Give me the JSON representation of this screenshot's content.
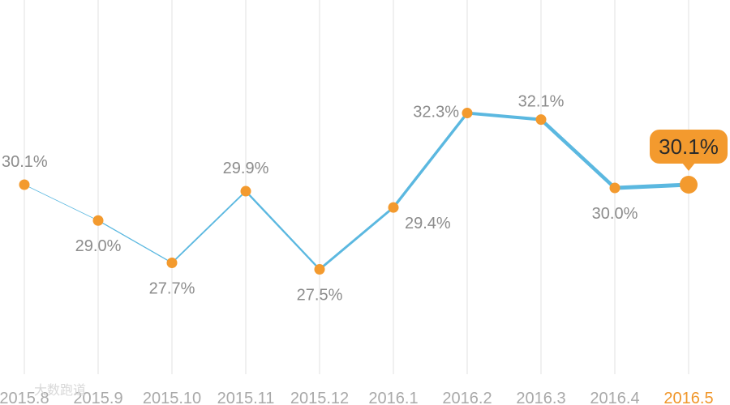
{
  "chart_data": {
    "type": "line",
    "categories": [
      "2015.8",
      "2015.9",
      "2015.10",
      "2015.11",
      "2015.12",
      "2016.1",
      "2016.2",
      "2016.3",
      "2016.4",
      "2016.5"
    ],
    "values": [
      30.1,
      29.0,
      27.7,
      29.9,
      27.5,
      29.4,
      32.3,
      32.1,
      30.0,
      30.1
    ],
    "labels": [
      "30.1%",
      "29.0%",
      "27.7%",
      "29.9%",
      "27.5%",
      "29.4%",
      "32.3%",
      "32.1%",
      "30.0%",
      "30.1%"
    ],
    "label_position": [
      "above",
      "below",
      "below",
      "above",
      "below",
      "below",
      "above",
      "above",
      "below",
      "callout"
    ],
    "highlight_index": 9,
    "title": "",
    "xlabel": "",
    "ylabel": "",
    "grid": "vertical",
    "colors": {
      "line": "#5bb8e0",
      "marker": "#f39a2e",
      "highlight_label": "#f0962a",
      "grid": "#e2e2e2",
      "text": "#8c8c8c"
    }
  },
  "watermark": "大数跑道"
}
